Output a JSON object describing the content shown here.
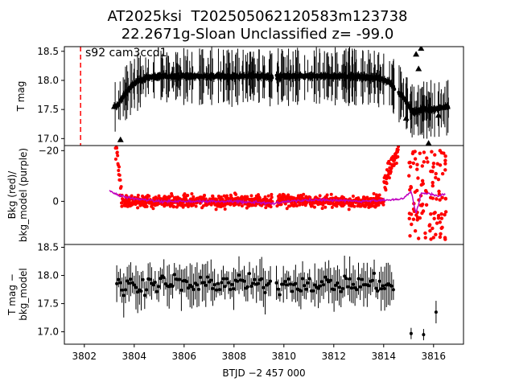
{
  "figure": {
    "title_line1": "AT2025ksi  T202505062120583m123738",
    "title_line2": "22.2671g-Sloan Unclassified z= -99.0",
    "xlabel": "BTJD −2 457 000"
  },
  "colors": {
    "lightcurve": "#000000",
    "background": "#ff0000",
    "background_model": "#bf00bf",
    "marker_line": "#ff0000"
  },
  "chart_data": [
    {
      "type": "scatter",
      "panel": "lightcurve",
      "ylabel": "T mag",
      "ylim": [
        18.58,
        16.88
      ],
      "y_inverted": true,
      "yticks": [
        17.0,
        17.5,
        18.0,
        18.5
      ],
      "yticklabels": [
        "17.0",
        "17.5",
        "18.0",
        "18.5"
      ],
      "annotation": "s92 cam3ccd1",
      "vline_x": 3801.85,
      "series": [
        {
          "name": "",
          "style": "black points with error bars",
          "x": [
            3803.3,
            3803.6,
            3804.0,
            3804.5,
            3805.0,
            3806.0,
            3807.0,
            3808.0,
            3809.0,
            3809.5,
            3810.0,
            3811.0,
            3812.0,
            3813.0,
            3813.8,
            3814.2,
            3814.8,
            3815.2,
            3815.6,
            3816.0,
            3816.5
          ],
          "y": [
            17.55,
            17.75,
            17.95,
            18.05,
            18.07,
            18.07,
            18.07,
            18.07,
            18.08,
            18.05,
            18.07,
            18.07,
            18.07,
            18.07,
            18.03,
            17.98,
            17.7,
            17.45,
            17.5,
            17.5,
            17.55
          ]
        },
        {
          "name": "",
          "style": "black triangles (upper limits)",
          "x": [
            3803.2,
            3803.45,
            3815.3,
            3815.4,
            3815.5,
            3815.8,
            3816.2,
            3816.55,
            3814.9
          ],
          "y": [
            17.55,
            16.98,
            18.45,
            18.2,
            18.55,
            16.92,
            17.4,
            17.55,
            17.35
          ]
        }
      ]
    },
    {
      "type": "scatter",
      "panel": "background",
      "ylabel": "Bkg (red)/\nbkg_model (purple)",
      "ylim": [
        -22,
        17
      ],
      "yticks": [
        -20,
        0
      ],
      "yticklabels": [
        "−20",
        "0"
      ],
      "series": [
        {
          "name": "",
          "style": "red points",
          "x": [
            3803.3,
            3803.5,
            3804.0,
            3805.0,
            3806.0,
            3807.0,
            3808.0,
            3809.0,
            3809.6,
            3810.0,
            3811.0,
            3812.0,
            3813.0,
            3814.0,
            3814.3,
            3814.6
          ],
          "y": [
            -20,
            0,
            0,
            0,
            0,
            0,
            0,
            0,
            0,
            0,
            0,
            0,
            0,
            -5,
            -15,
            -20
          ]
        },
        {
          "name": "",
          "style": "purple line",
          "x": [
            3803.0,
            3803.5,
            3804.0,
            3805.0,
            3806.0,
            3807.0,
            3808.0,
            3809.0,
            3809.6,
            3810.0,
            3811.0,
            3812.0,
            3813.0,
            3814.0,
            3814.8,
            3815.1,
            3815.3,
            3815.5,
            3815.8,
            3816.2,
            3816.5
          ],
          "y": [
            -4,
            -2,
            -1,
            0,
            0,
            0,
            0,
            0.5,
            1,
            0,
            -0.5,
            -0.5,
            0,
            -0.5,
            -1,
            -4,
            5,
            -3,
            -3,
            -2,
            -3
          ]
        }
      ]
    },
    {
      "type": "scatter",
      "panel": "difference",
      "ylabel": "T mag −\nbkg_model",
      "ylim": [
        18.55,
        16.78
      ],
      "y_inverted": true,
      "yticks": [
        17.0,
        17.5,
        18.0,
        18.5
      ],
      "yticklabels": [
        "17.0",
        "17.5",
        "18.0",
        "18.5"
      ],
      "xlim": [
        3801.2,
        3817.2
      ],
      "xticks": [
        3802,
        3804,
        3806,
        3808,
        3810,
        3812,
        3814,
        3816
      ],
      "xticklabels": [
        "3802",
        "3804",
        "3806",
        "3808",
        "3810",
        "3812",
        "3814",
        "3816"
      ],
      "series": [
        {
          "name": "",
          "style": "black points with error bars",
          "x": [
            3803.4,
            3804.0,
            3805.0,
            3806.0,
            3807.0,
            3808.0,
            3809.0,
            3809.6,
            3810.0,
            3811.0,
            3812.0,
            3813.0,
            3814.0,
            3814.4,
            3815.1,
            3815.6,
            3816.1
          ],
          "y": [
            17.8,
            17.85,
            17.85,
            17.85,
            17.85,
            17.85,
            17.85,
            17.75,
            17.85,
            17.85,
            17.85,
            17.85,
            17.85,
            17.8,
            16.95,
            16.95,
            17.35
          ]
        }
      ]
    }
  ]
}
